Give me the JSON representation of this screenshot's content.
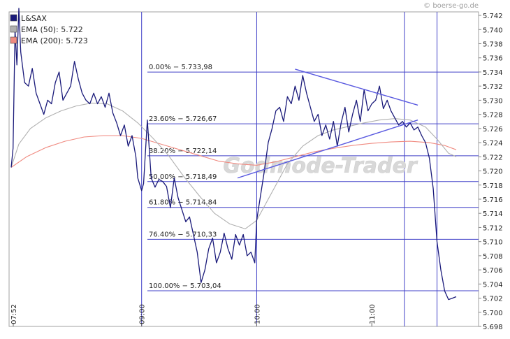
{
  "watermark_source": "© boerse-go.de",
  "watermark_brand": "Godmode-Trader",
  "colors": {
    "price": "#1a1a7a",
    "ema50": "#b0b0b0",
    "ema200": "#f08a80",
    "grid": "#4040c8",
    "trendline": "#5a5ae0",
    "plot_bg": "#ffffff",
    "frame": "#a0a0a0"
  },
  "chart_data": {
    "type": "line",
    "title": "",
    "xlabel": "",
    "ylabel": "",
    "ylim": [
      5.698,
      5.7425
    ],
    "y_ticks": [
      "5.698",
      "5.700",
      "5.702",
      "5.704",
      "5.706",
      "5.708",
      "5.710",
      "5.712",
      "5.714",
      "5.716",
      "5.718",
      "5.720",
      "5.722",
      "5.724",
      "5.726",
      "5.728",
      "5.730",
      "5.732",
      "5.734",
      "5.736",
      "5.738",
      "5.740",
      "5.742"
    ],
    "x_range": [
      "07:52",
      "11:44"
    ],
    "x_ticks": [
      {
        "label": "07:52",
        "t": "07:52"
      },
      {
        "label": "09:00",
        "t": "09:00"
      },
      {
        "label": "10:00",
        "t": "10:00"
      },
      {
        "label": "11:00",
        "t": "11:00"
      }
    ],
    "vertical_lines": [
      "09:00",
      "10:00",
      "11:17",
      "11:34"
    ],
    "legend": {
      "position": "top-left",
      "entries": [
        {
          "label": "L&SAX",
          "key": "price"
        },
        {
          "label": "EMA (50): 5.722",
          "key": "ema50"
        },
        {
          "label": "EMA (200): 5.723",
          "key": "ema200"
        }
      ]
    },
    "fibonacci": {
      "x_start": "09:03",
      "levels": [
        {
          "label": "0.00% − 5.733,98",
          "value": 5.73398
        },
        {
          "label": "23.60% − 5.726,67",
          "value": 5.72667
        },
        {
          "label": "38.20% − 5.722,14",
          "value": 5.72214
        },
        {
          "label": "50.00% − 5.718,49",
          "value": 5.71849
        },
        {
          "label": "61.80% − 5.714,84",
          "value": 5.71484
        },
        {
          "label": "76.40% − 5.710,33",
          "value": 5.71033
        },
        {
          "label": "100.00% − 5.703,04",
          "value": 5.70304
        }
      ]
    },
    "trendlines": [
      {
        "from": [
          "10:20",
          5.7344
        ],
        "to": [
          "11:24",
          5.7293
        ]
      },
      {
        "from": [
          "09:50",
          5.719
        ],
        "to": [
          "11:24",
          5.7272
        ]
      }
    ],
    "series": [
      {
        "name": "L&SAX",
        "key": "price",
        "points": [
          [
            "07:52",
            5.7205
          ],
          [
            "07:53",
            5.7232
          ],
          [
            "07:54",
            5.74
          ],
          [
            "07:55",
            5.735
          ],
          [
            "07:56",
            5.743
          ],
          [
            "07:57",
            5.7368
          ],
          [
            "07:59",
            5.7325
          ],
          [
            "08:01",
            5.732
          ],
          [
            "08:03",
            5.7345
          ],
          [
            "08:05",
            5.731
          ],
          [
            "08:07",
            5.7295
          ],
          [
            "08:09",
            5.728
          ],
          [
            "08:11",
            5.73
          ],
          [
            "08:13",
            5.7295
          ],
          [
            "08:15",
            5.7325
          ],
          [
            "08:17",
            5.734
          ],
          [
            "08:19",
            5.73
          ],
          [
            "08:21",
            5.731
          ],
          [
            "08:23",
            5.732
          ],
          [
            "08:25",
            5.7355
          ],
          [
            "08:27",
            5.733
          ],
          [
            "08:29",
            5.731
          ],
          [
            "08:31",
            5.73
          ],
          [
            "08:33",
            5.7295
          ],
          [
            "08:35",
            5.731
          ],
          [
            "08:37",
            5.7295
          ],
          [
            "08:39",
            5.7305
          ],
          [
            "08:41",
            5.729
          ],
          [
            "08:43",
            5.731
          ],
          [
            "08:45",
            5.7282
          ],
          [
            "08:47",
            5.7268
          ],
          [
            "08:49",
            5.725
          ],
          [
            "08:51",
            5.7265
          ],
          [
            "08:53",
            5.7235
          ],
          [
            "08:55",
            5.725
          ],
          [
            "08:57",
            5.722
          ],
          [
            "08:58",
            5.719
          ],
          [
            "09:00",
            5.7172
          ],
          [
            "09:01",
            5.7182
          ],
          [
            "09:03",
            5.7272
          ],
          [
            "09:05",
            5.719
          ],
          [
            "09:07",
            5.7177
          ],
          [
            "09:09",
            5.7188
          ],
          [
            "09:11",
            5.7185
          ],
          [
            "09:13",
            5.7178
          ],
          [
            "09:15",
            5.7148
          ],
          [
            "09:17",
            5.719
          ],
          [
            "09:19",
            5.7162
          ],
          [
            "09:21",
            5.7145
          ],
          [
            "09:23",
            5.7128
          ],
          [
            "09:25",
            5.7135
          ],
          [
            "09:27",
            5.711
          ],
          [
            "09:29",
            5.7085
          ],
          [
            "09:31",
            5.7042
          ],
          [
            "09:33",
            5.706
          ],
          [
            "09:35",
            5.709
          ],
          [
            "09:37",
            5.7105
          ],
          [
            "09:39",
            5.707
          ],
          [
            "09:41",
            5.7085
          ],
          [
            "09:43",
            5.7112
          ],
          [
            "09:45",
            5.709
          ],
          [
            "09:47",
            5.7075
          ],
          [
            "09:49",
            5.711
          ],
          [
            "09:51",
            5.7095
          ],
          [
            "09:53",
            5.711
          ],
          [
            "09:55",
            5.708
          ],
          [
            "09:57",
            5.7085
          ],
          [
            "09:59",
            5.707
          ],
          [
            "10:00",
            5.713
          ],
          [
            "10:02",
            5.7165
          ],
          [
            "10:04",
            5.72
          ],
          [
            "10:06",
            5.724
          ],
          [
            "10:08",
            5.726
          ],
          [
            "10:10",
            5.7285
          ],
          [
            "10:12",
            5.729
          ],
          [
            "10:14",
            5.727
          ],
          [
            "10:16",
            5.7305
          ],
          [
            "10:18",
            5.7295
          ],
          [
            "10:20",
            5.732
          ],
          [
            "10:22",
            5.73
          ],
          [
            "10:24",
            5.7335
          ],
          [
            "10:26",
            5.731
          ],
          [
            "10:28",
            5.729
          ],
          [
            "10:30",
            5.727
          ],
          [
            "10:32",
            5.728
          ],
          [
            "10:34",
            5.725
          ],
          [
            "10:36",
            5.7265
          ],
          [
            "10:38",
            5.7245
          ],
          [
            "10:40",
            5.727
          ],
          [
            "10:42",
            5.7235
          ],
          [
            "10:44",
            5.7268
          ],
          [
            "10:46",
            5.729
          ],
          [
            "10:48",
            5.7255
          ],
          [
            "10:50",
            5.728
          ],
          [
            "10:52",
            5.73
          ],
          [
            "10:54",
            5.727
          ],
          [
            "10:56",
            5.7315
          ],
          [
            "10:58",
            5.7285
          ],
          [
            "11:00",
            5.7295
          ],
          [
            "11:02",
            5.73
          ],
          [
            "11:04",
            5.732
          ],
          [
            "11:06",
            5.7288
          ],
          [
            "11:08",
            5.73
          ],
          [
            "11:10",
            5.7285
          ],
          [
            "11:12",
            5.7275
          ],
          [
            "11:14",
            5.7265
          ],
          [
            "11:16",
            5.727
          ],
          [
            "11:18",
            5.7262
          ],
          [
            "11:20",
            5.7268
          ],
          [
            "11:22",
            5.7258
          ],
          [
            "11:24",
            5.7262
          ],
          [
            "11:26",
            5.725
          ],
          [
            "11:28",
            5.724
          ],
          [
            "11:30",
            5.7218
          ],
          [
            "11:32",
            5.7175
          ],
          [
            "11:34",
            5.71
          ],
          [
            "11:36",
            5.706
          ],
          [
            "11:38",
            5.703
          ],
          [
            "11:40",
            5.7018
          ],
          [
            "11:42",
            5.702
          ],
          [
            "11:44",
            5.7022
          ]
        ]
      },
      {
        "name": "EMA (50): 5.722",
        "key": "ema50",
        "points": [
          [
            "07:52",
            5.7205
          ],
          [
            "07:56",
            5.7238
          ],
          [
            "08:02",
            5.726
          ],
          [
            "08:10",
            5.7275
          ],
          [
            "08:18",
            5.7285
          ],
          [
            "08:26",
            5.7292
          ],
          [
            "08:34",
            5.7296
          ],
          [
            "08:42",
            5.7295
          ],
          [
            "08:50",
            5.7285
          ],
          [
            "08:58",
            5.7268
          ],
          [
            "09:06",
            5.7246
          ],
          [
            "09:14",
            5.7222
          ],
          [
            "09:22",
            5.7192
          ],
          [
            "09:30",
            5.7165
          ],
          [
            "09:38",
            5.714
          ],
          [
            "09:46",
            5.7125
          ],
          [
            "09:54",
            5.7118
          ],
          [
            "10:00",
            5.713
          ],
          [
            "10:08",
            5.717
          ],
          [
            "10:16",
            5.721
          ],
          [
            "10:24",
            5.7235
          ],
          [
            "10:32",
            5.725
          ],
          [
            "10:40",
            5.7258
          ],
          [
            "10:48",
            5.7263
          ],
          [
            "10:56",
            5.7268
          ],
          [
            "11:04",
            5.7272
          ],
          [
            "11:12",
            5.7274
          ],
          [
            "11:20",
            5.7272
          ],
          [
            "11:28",
            5.7262
          ],
          [
            "11:34",
            5.7245
          ],
          [
            "11:40",
            5.7225
          ],
          [
            "11:44",
            5.722
          ]
        ]
      },
      {
        "name": "EMA (200): 5.723",
        "key": "ema200",
        "points": [
          [
            "07:52",
            5.7205
          ],
          [
            "08:00",
            5.722
          ],
          [
            "08:10",
            5.7233
          ],
          [
            "08:20",
            5.7242
          ],
          [
            "08:30",
            5.7248
          ],
          [
            "08:40",
            5.725
          ],
          [
            "08:50",
            5.725
          ],
          [
            "09:00",
            5.7246
          ],
          [
            "09:10",
            5.7238
          ],
          [
            "09:20",
            5.723
          ],
          [
            "09:30",
            5.7222
          ],
          [
            "09:40",
            5.7214
          ],
          [
            "09:50",
            5.721
          ],
          [
            "10:00",
            5.7208
          ],
          [
            "10:10",
            5.7213
          ],
          [
            "10:20",
            5.722
          ],
          [
            "10:30",
            5.7227
          ],
          [
            "10:40",
            5.7232
          ],
          [
            "10:50",
            5.7236
          ],
          [
            "11:00",
            5.7239
          ],
          [
            "11:10",
            5.7241
          ],
          [
            "11:20",
            5.7242
          ],
          [
            "11:30",
            5.724
          ],
          [
            "11:38",
            5.7236
          ],
          [
            "11:44",
            5.723
          ]
        ]
      }
    ]
  }
}
